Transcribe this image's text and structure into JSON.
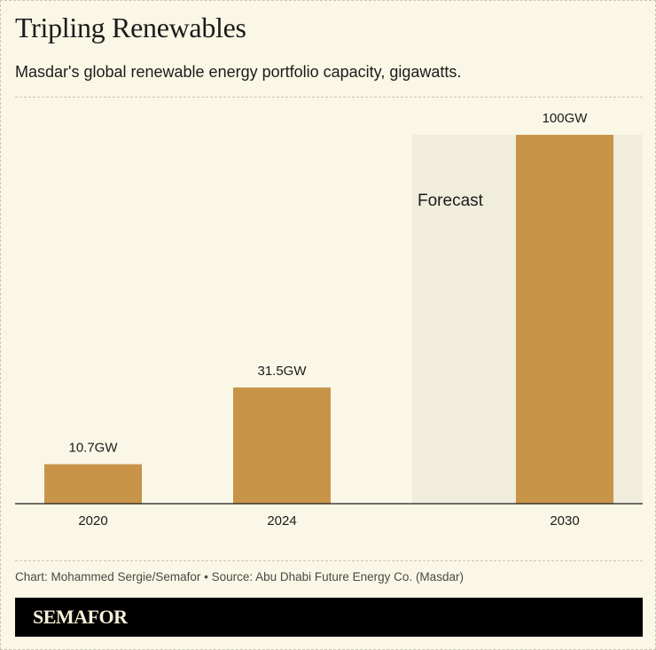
{
  "title": "Tripling Renewables",
  "subtitle": "Masdar's global renewable energy portfolio capacity, gigawatts.",
  "credit": "Chart: Mohammed Sergie/Semafor • Source: Abu Dhabi Future Energy Co. (Masdar)",
  "logo": "SEMAFOR",
  "colors": {
    "bar": "#c8944a",
    "forecast_band": "#f0eddc",
    "background": "#faf7e6"
  },
  "chart_data": {
    "type": "bar",
    "categories": [
      "2020",
      "2024",
      "2030"
    ],
    "values": [
      10.7,
      31.5,
      100
    ],
    "data_labels": [
      "10.7GW",
      "31.5GW",
      "100GW"
    ],
    "ylim": [
      0,
      100
    ],
    "grid": false,
    "annotation": {
      "text": "Forecast",
      "applies_to": "2030"
    }
  }
}
